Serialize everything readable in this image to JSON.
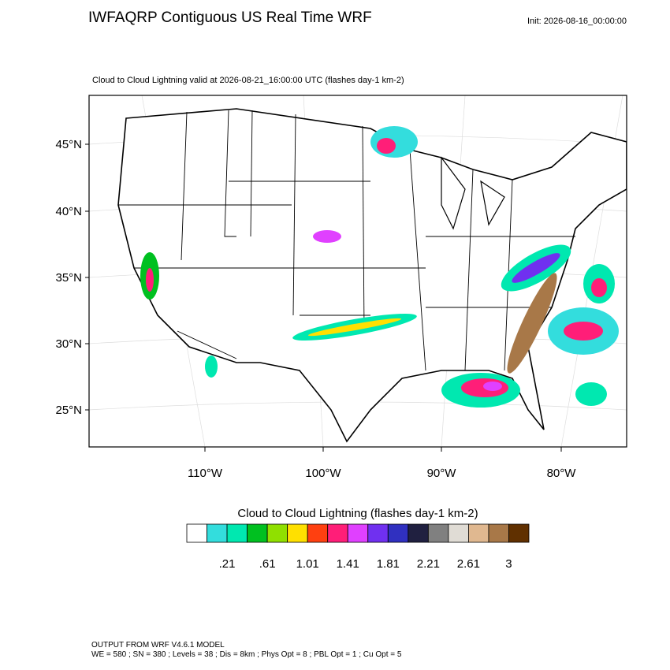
{
  "header": {
    "title": "IWFAQRP Contiguous US Real Time WRF",
    "init": "Init: 2026-08-16_00:00:00"
  },
  "map": {
    "subtitle": "Cloud to Cloud Lightning valid at 2026-08-21_16:00:00 UTC   (flashes day-1 km-2)",
    "lat_labels": [
      "45°N",
      "40°N",
      "35°N",
      "30°N",
      "25°N"
    ],
    "lon_labels": [
      "110°W",
      "100°W",
      "90°W",
      "80°W"
    ]
  },
  "colorbar": {
    "title": "Cloud to Cloud Lightning  (flashes day-1 km-2)",
    "colors": [
      "#ffffff",
      "#33dddd",
      "#00e8b0",
      "#00c020",
      "#90e000",
      "#ffe000",
      "#ff4010",
      "#ff1e78",
      "#e040ff",
      "#7030f0",
      "#3030c0",
      "#202040",
      "#808080",
      "#e0dcd5",
      "#e0b890",
      "#a87848",
      "#603000"
    ],
    "labels": [
      ".21",
      ".61",
      "1.01",
      "1.41",
      "1.81",
      "2.21",
      "2.61",
      "3"
    ]
  },
  "footer": {
    "line1": "OUTPUT FROM WRF V4.6.1 MODEL",
    "line2": "WE = 580 ; SN = 380 ; Levels = 38 ; Dis = 8km ; Phys Opt = 8 ; PBL Opt = 1 ; Cu Opt = 5"
  }
}
